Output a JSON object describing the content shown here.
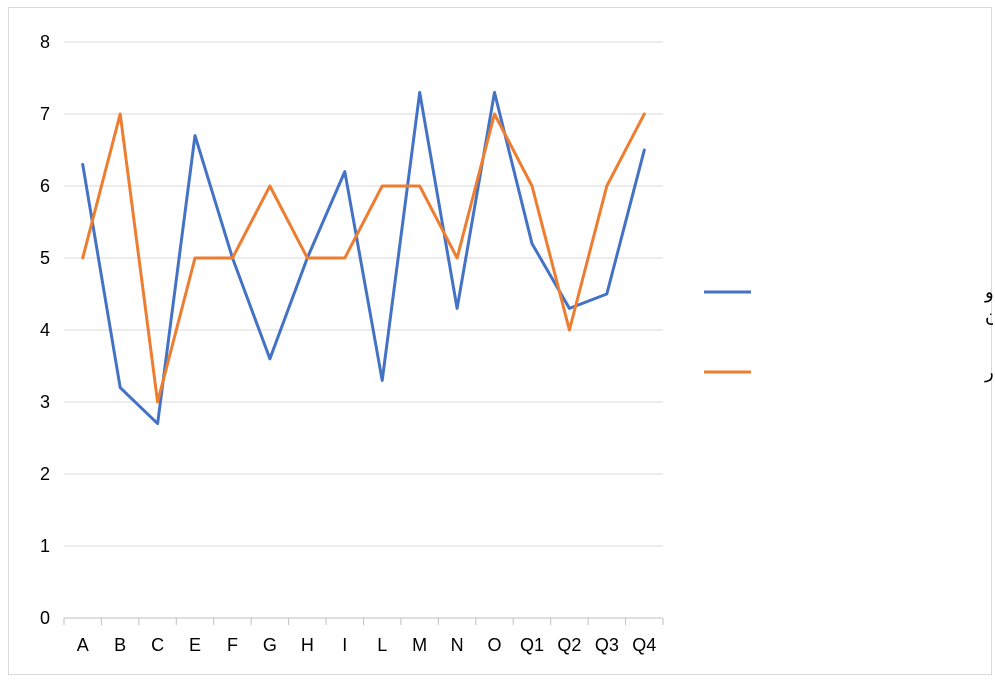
{
  "chart_data": {
    "type": "line",
    "title": "",
    "xlabel": "",
    "ylabel": "",
    "categories": [
      "A",
      "B",
      "C",
      "E",
      "F",
      "G",
      "H",
      "I",
      "L",
      "M",
      "N",
      "O",
      "Q1",
      "Q2",
      "Q3",
      "Q4"
    ],
    "ylim": [
      0,
      8
    ],
    "yticks": [
      0,
      1,
      2,
      3,
      4,
      5,
      6,
      7,
      8
    ],
    "grid": true,
    "legend_position": "right",
    "series": [
      {
        "name_lines": [
          "دارای گرایش به سیگار و",
          "قلیان"
        ],
        "color": "#4472c4",
        "values": [
          6.3,
          3.2,
          2.7,
          6.7,
          5.0,
          3.6,
          5.0,
          6.2,
          3.3,
          7.3,
          4.3,
          7.3,
          5.2,
          4.3,
          4.5,
          6.5
        ]
      },
      {
        "name": "گروه بهنجار",
        "color": "#ed7d31",
        "values": [
          5,
          7,
          3,
          5,
          5,
          6,
          5,
          5,
          6,
          6,
          5,
          7,
          6,
          4,
          6,
          7
        ]
      }
    ]
  }
}
